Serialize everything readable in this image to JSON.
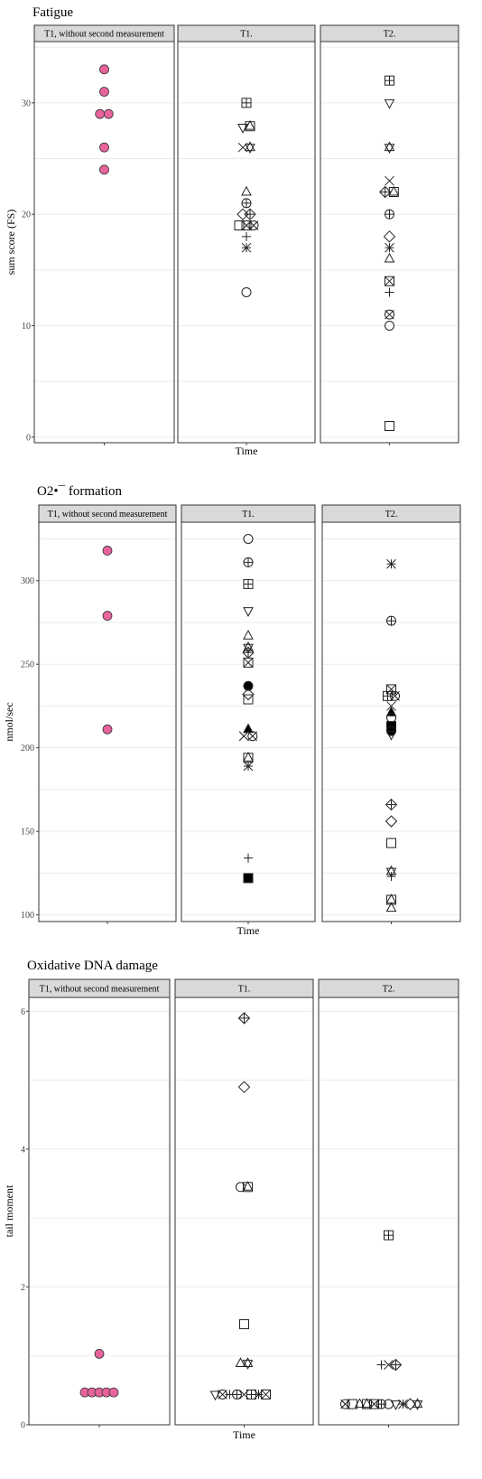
{
  "chart_data": [
    {
      "type": "scatter",
      "title": "Fatigue",
      "xlabel": "Time",
      "ylabel": "sum score (FS)",
      "ylim": [
        -0.5,
        35.5
      ],
      "yticks": [
        0,
        10,
        20,
        30
      ],
      "grid": true,
      "facets": [
        {
          "label": "T1, without second measurement",
          "points": [
            {
              "x": 0,
              "y": 33,
              "shape": "filled-circle"
            },
            {
              "x": 0,
              "y": 31,
              "shape": "filled-circle"
            },
            {
              "x": -0.6,
              "y": 29,
              "shape": "filled-circle"
            },
            {
              "x": 0.6,
              "y": 29,
              "shape": "filled-circle"
            },
            {
              "x": 0,
              "y": 26,
              "shape": "filled-circle"
            },
            {
              "x": 0,
              "y": 24,
              "shape": "filled-circle"
            }
          ]
        },
        {
          "label": "T1.",
          "points": [
            {
              "x": 0,
              "y": 30,
              "shape": "square-plus"
            },
            {
              "x": -0.5,
              "y": 27.8,
              "shape": "triangle-down"
            },
            {
              "x": 0.5,
              "y": 27.9,
              "shape": "square-triangle"
            },
            {
              "x": -0.5,
              "y": 26,
              "shape": "cross"
            },
            {
              "x": 0.5,
              "y": 26,
              "shape": "star-of-david"
            },
            {
              "x": 0,
              "y": 22,
              "shape": "triangle-up"
            },
            {
              "x": 0,
              "y": 21,
              "shape": "circle-plus"
            },
            {
              "x": -0.5,
              "y": 20,
              "shape": "diamond"
            },
            {
              "x": 0.5,
              "y": 20,
              "shape": "diamond-plus"
            },
            {
              "x": -1,
              "y": 19,
              "shape": "square"
            },
            {
              "x": 0,
              "y": 19,
              "shape": "square-cross"
            },
            {
              "x": 1,
              "y": 19,
              "shape": "circle-cross"
            },
            {
              "x": 0,
              "y": 18,
              "shape": "plus"
            },
            {
              "x": 0,
              "y": 17,
              "shape": "asterisk"
            },
            {
              "x": 0,
              "y": 13,
              "shape": "circle"
            }
          ]
        },
        {
          "label": "T2.",
          "points": [
            {
              "x": 0,
              "y": 32,
              "shape": "square-plus"
            },
            {
              "x": 0,
              "y": 30,
              "shape": "triangle-down"
            },
            {
              "x": 0,
              "y": 26,
              "shape": "star-of-david"
            },
            {
              "x": 0,
              "y": 23,
              "shape": "cross"
            },
            {
              "x": -0.6,
              "y": 22,
              "shape": "diamond-plus"
            },
            {
              "x": 0.6,
              "y": 22,
              "shape": "square-triangle"
            },
            {
              "x": 0,
              "y": 20,
              "shape": "circle-plus"
            },
            {
              "x": 0,
              "y": 18,
              "shape": "diamond"
            },
            {
              "x": 0,
              "y": 17,
              "shape": "asterisk"
            },
            {
              "x": 0,
              "y": 16,
              "shape": "triangle-up"
            },
            {
              "x": 0,
              "y": 14,
              "shape": "square-cross"
            },
            {
              "x": 0,
              "y": 13,
              "shape": "plus"
            },
            {
              "x": 0,
              "y": 11,
              "shape": "circle-cross"
            },
            {
              "x": 0,
              "y": 10,
              "shape": "circle"
            },
            {
              "x": 0,
              "y": 1,
              "shape": "square"
            }
          ]
        }
      ]
    },
    {
      "type": "scatter",
      "title": "O2•¯ formation",
      "xlabel": "Time",
      "ylabel": "nmol/sec",
      "ylim": [
        96,
        335
      ],
      "yticks": [
        100,
        150,
        200,
        250,
        300
      ],
      "grid": true,
      "facets": [
        {
          "label": "T1, without second measurement",
          "points": [
            {
              "x": 0,
              "y": 318,
              "shape": "filled-circle"
            },
            {
              "x": 0,
              "y": 279,
              "shape": "filled-circle"
            },
            {
              "x": 0,
              "y": 211,
              "shape": "filled-circle"
            }
          ]
        },
        {
          "label": "T1.",
          "points": [
            {
              "x": 0,
              "y": 325,
              "shape": "circle"
            },
            {
              "x": 0,
              "y": 311,
              "shape": "circle-plus"
            },
            {
              "x": 0,
              "y": 298,
              "shape": "square-plus"
            },
            {
              "x": 0,
              "y": 282,
              "shape": "triangle-down"
            },
            {
              "x": 0,
              "y": 267,
              "shape": "triangle-up"
            },
            {
              "x": 0,
              "y": 260,
              "shape": "star-of-david"
            },
            {
              "x": 0,
              "y": 257,
              "shape": "diamond-plus"
            },
            {
              "x": 0,
              "y": 251,
              "shape": "square-cross"
            },
            {
              "x": 0,
              "y": 237,
              "shape": "solid-circle"
            },
            {
              "x": 0,
              "y": 232,
              "shape": "diamond"
            },
            {
              "x": 0,
              "y": 229,
              "shape": "square"
            },
            {
              "x": 0,
              "y": 211,
              "shape": "solid-triangle"
            },
            {
              "x": -0.6,
              "y": 207,
              "shape": "cross"
            },
            {
              "x": 0.6,
              "y": 207,
              "shape": "circle-cross"
            },
            {
              "x": 0,
              "y": 194,
              "shape": "square-triangle"
            },
            {
              "x": 0,
              "y": 189,
              "shape": "asterisk"
            },
            {
              "x": 0,
              "y": 134,
              "shape": "plus"
            },
            {
              "x": 0,
              "y": 122,
              "shape": "solid-square"
            }
          ]
        },
        {
          "label": "T2.",
          "points": [
            {
              "x": 0,
              "y": 310,
              "shape": "asterisk"
            },
            {
              "x": 0,
              "y": 276,
              "shape": "circle-plus"
            },
            {
              "x": 0,
              "y": 235,
              "shape": "square-cross"
            },
            {
              "x": -0.5,
              "y": 231,
              "shape": "square-plus"
            },
            {
              "x": 0.5,
              "y": 231,
              "shape": "circle-cross"
            },
            {
              "x": 0,
              "y": 225,
              "shape": "cross"
            },
            {
              "x": 0,
              "y": 221,
              "shape": "solid-triangle"
            },
            {
              "x": 0,
              "y": 218,
              "shape": "circle"
            },
            {
              "x": 0,
              "y": 213,
              "shape": "solid-square"
            },
            {
              "x": 0,
              "y": 210,
              "shape": "solid-circle"
            },
            {
              "x": 0,
              "y": 208,
              "shape": "triangle-down"
            },
            {
              "x": 0,
              "y": 166,
              "shape": "diamond-plus"
            },
            {
              "x": 0,
              "y": 156,
              "shape": "diamond"
            },
            {
              "x": 0,
              "y": 143,
              "shape": "square"
            },
            {
              "x": 0,
              "y": 126,
              "shape": "star-of-david"
            },
            {
              "x": 0,
              "y": 123,
              "shape": "plus"
            },
            {
              "x": 0,
              "y": 109,
              "shape": "square-triangle"
            },
            {
              "x": 0,
              "y": 104,
              "shape": "triangle-up"
            }
          ]
        }
      ]
    },
    {
      "type": "scatter",
      "title": "Oxidative DNA damage",
      "xlabel": "Time",
      "ylabel": "tail moment",
      "ylim": [
        0,
        6.2
      ],
      "yticks": [
        0,
        2,
        4,
        6
      ],
      "grid": true,
      "facets": [
        {
          "label": "T1, without second measurement",
          "points": [
            {
              "x": 0,
              "y": 1.03,
              "shape": "filled-circle"
            },
            {
              "x": -2,
              "y": 0.47,
              "shape": "filled-circle"
            },
            {
              "x": -1,
              "y": 0.47,
              "shape": "filled-circle"
            },
            {
              "x": 0,
              "y": 0.47,
              "shape": "filled-circle"
            },
            {
              "x": 1,
              "y": 0.47,
              "shape": "filled-circle"
            },
            {
              "x": 2,
              "y": 0.47,
              "shape": "filled-circle"
            }
          ]
        },
        {
          "label": "T1.",
          "points": [
            {
              "x": 0,
              "y": 5.9,
              "shape": "diamond-plus"
            },
            {
              "x": 0,
              "y": 4.9,
              "shape": "diamond"
            },
            {
              "x": -0.5,
              "y": 3.45,
              "shape": "circle"
            },
            {
              "x": 0.5,
              "y": 3.45,
              "shape": "square-triangle"
            },
            {
              "x": 0,
              "y": 1.46,
              "shape": "square"
            },
            {
              "x": -0.5,
              "y": 0.89,
              "shape": "triangle-up"
            },
            {
              "x": 0.5,
              "y": 0.89,
              "shape": "star-of-david"
            },
            {
              "x": -4,
              "y": 0.44,
              "shape": "triangle-down"
            },
            {
              "x": -3,
              "y": 0.44,
              "shape": "circle-cross"
            },
            {
              "x": -2,
              "y": 0.44,
              "shape": "plus"
            },
            {
              "x": -1,
              "y": 0.44,
              "shape": "circle-plus"
            },
            {
              "x": 0,
              "y": 0.44,
              "shape": "cross"
            },
            {
              "x": 1,
              "y": 0.44,
              "shape": "square-plus"
            },
            {
              "x": 2,
              "y": 0.44,
              "shape": "asterisk"
            },
            {
              "x": 3,
              "y": 0.44,
              "shape": "square-cross"
            }
          ]
        },
        {
          "label": "T2.",
          "points": [
            {
              "x": 0,
              "y": 2.75,
              "shape": "square-plus"
            },
            {
              "x": -1,
              "y": 0.87,
              "shape": "plus"
            },
            {
              "x": 0,
              "y": 0.87,
              "shape": "cross"
            },
            {
              "x": 1,
              "y": 0.87,
              "shape": "diamond-plus"
            },
            {
              "x": -6,
              "y": 0.3,
              "shape": "circle-cross"
            },
            {
              "x": -5,
              "y": 0.3,
              "shape": "square"
            },
            {
              "x": -4,
              "y": 0.3,
              "shape": "triangle-up"
            },
            {
              "x": -3,
              "y": 0.3,
              "shape": "square-triangle"
            },
            {
              "x": -2,
              "y": 0.3,
              "shape": "square-cross"
            },
            {
              "x": -1,
              "y": 0.3,
              "shape": "circle-plus"
            },
            {
              "x": 0,
              "y": 0.3,
              "shape": "circle"
            },
            {
              "x": 1,
              "y": 0.3,
              "shape": "triangle-down"
            },
            {
              "x": 2,
              "y": 0.3,
              "shape": "asterisk"
            },
            {
              "x": 3,
              "y": 0.3,
              "shape": "diamond"
            },
            {
              "x": 4,
              "y": 0.3,
              "shape": "star-of-david"
            }
          ]
        }
      ]
    }
  ],
  "colors": {
    "highlight_fill": "#e8639b",
    "strip_fill": "#d9d9d9",
    "grid": "#ebebeb",
    "panel_border": "#333333"
  }
}
